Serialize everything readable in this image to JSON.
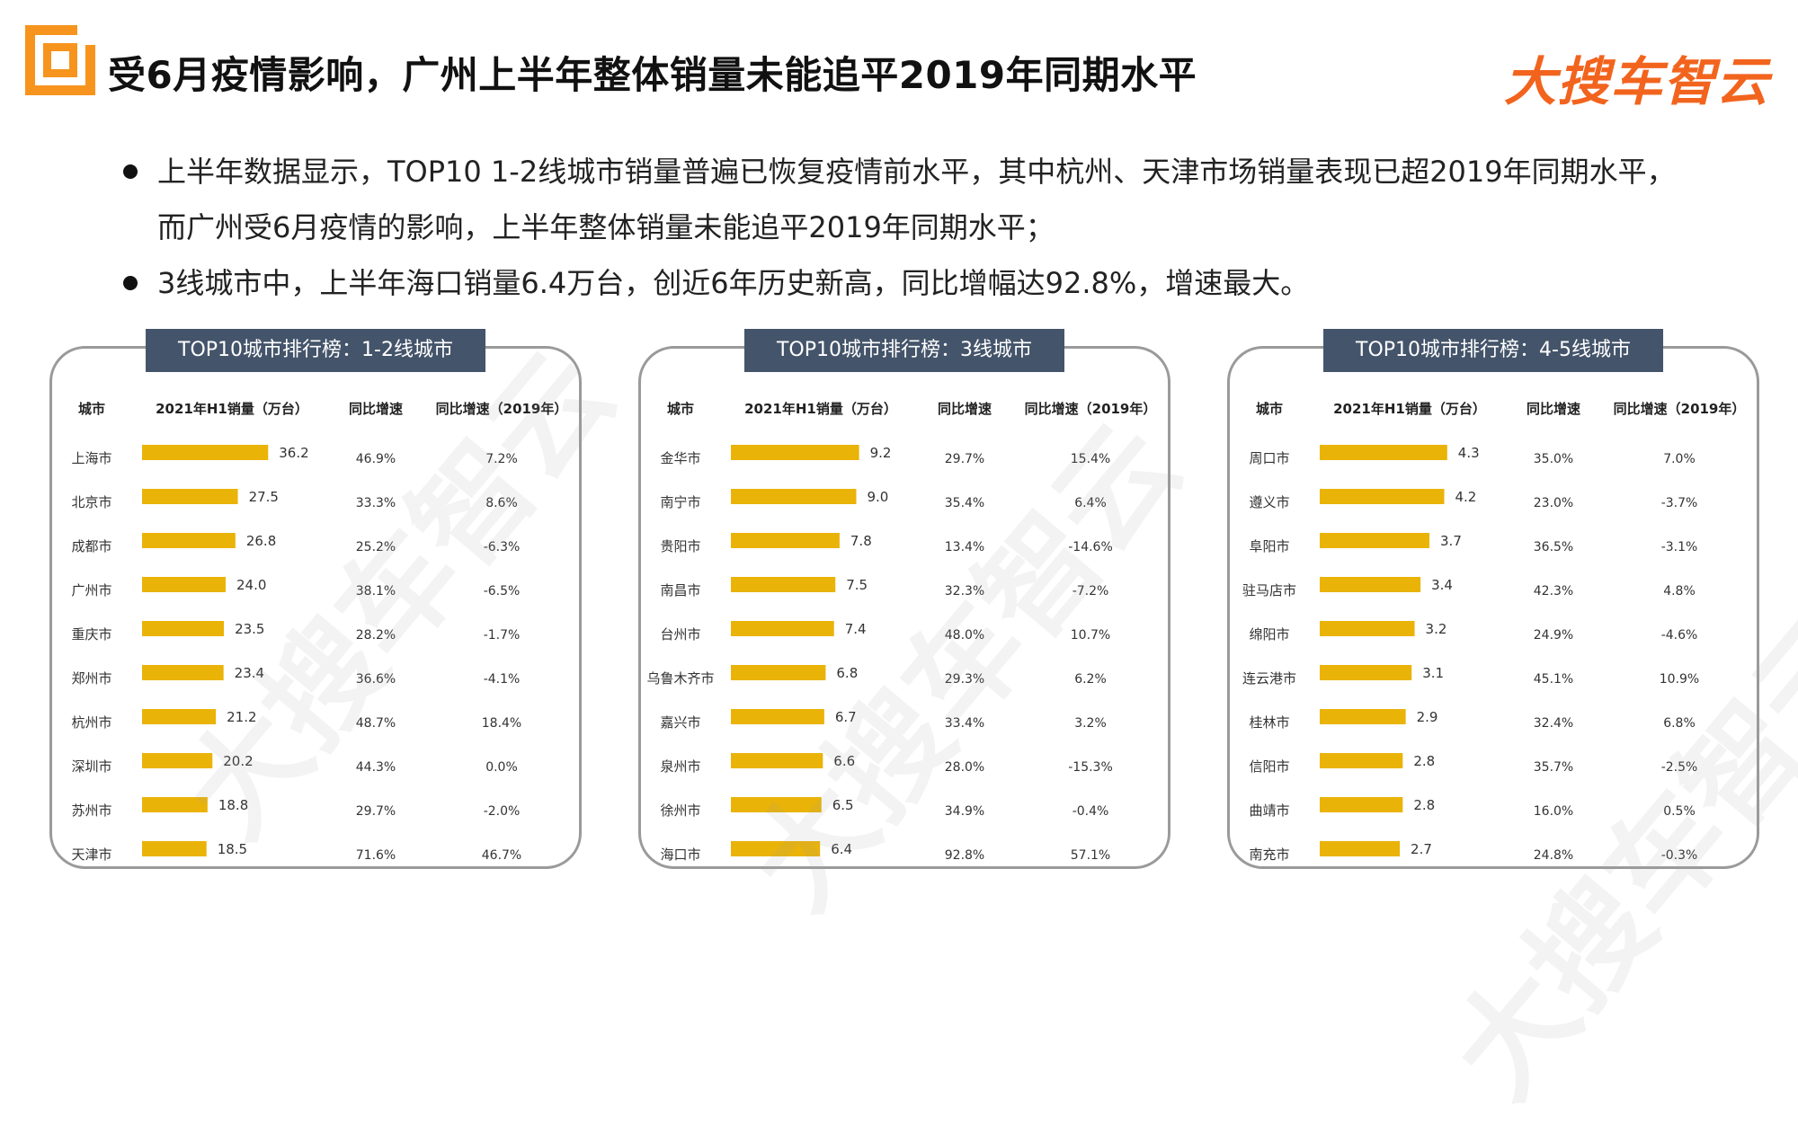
{
  "header": {
    "title": "受6月疫情影响，广州上半年整体销量未能追平2019年同期水平",
    "brand": "大搜车智云"
  },
  "bullets": [
    {
      "lines": [
        "上半年数据显示，TOP10  1-2线城市销量普遍已恢复疫情前水平，其中杭州、天津市场销量表现已超2019年同期水平，",
        "而广州受6月疫情的影响，上半年整体销量未能追平2019年同期水平；"
      ]
    },
    {
      "lines": [
        "3线城市中，上半年海口销量6.4万台，创近6年历史新高，同比增幅达92.8%，增速最大。"
      ]
    }
  ],
  "watermark": "大搜车智云",
  "colors": {
    "bar": "#eab308",
    "panel_title_bg": "#44546a",
    "brand": "#f2641e",
    "logo": "#f7941d"
  },
  "chart_data": [
    {
      "type": "bar",
      "title": "TOP10城市排行榜：1-2线城市",
      "columns": [
        "城市",
        "2021年H1销量（万台）",
        "同比增速",
        "同比增速（2019年）"
      ],
      "categories": [
        "上海市",
        "北京市",
        "成都市",
        "广州市",
        "重庆市",
        "郑州市",
        "杭州市",
        "深圳市",
        "苏州市",
        "天津市"
      ],
      "values": [
        36.2,
        27.5,
        26.8,
        24.0,
        23.5,
        23.4,
        21.2,
        20.2,
        18.8,
        18.5
      ],
      "value_labels": [
        "36.2",
        "27.5",
        "26.8",
        "24.0",
        "23.5",
        "23.4",
        "21.2",
        "20.2",
        "18.8",
        "18.5"
      ],
      "yoy": [
        "46.9%",
        "33.3%",
        "25.2%",
        "38.1%",
        "28.2%",
        "36.6%",
        "48.7%",
        "44.3%",
        "29.7%",
        "71.6%"
      ],
      "yoy_2019": [
        "7.2%",
        "8.6%",
        "-6.3%",
        "-6.5%",
        "-1.7%",
        "-4.1%",
        "18.4%",
        "0.0%",
        "-2.0%",
        "46.7%"
      ],
      "xlim": [
        0,
        40
      ]
    },
    {
      "type": "bar",
      "title": "TOP10城市排行榜：3线城市",
      "columns": [
        "城市",
        "2021年H1销量（万台）",
        "同比增速",
        "同比增速（2019年）"
      ],
      "categories": [
        "金华市",
        "南宁市",
        "贵阳市",
        "南昌市",
        "台州市",
        "乌鲁木齐市",
        "嘉兴市",
        "泉州市",
        "徐州市",
        "海口市"
      ],
      "values": [
        9.2,
        9.0,
        7.8,
        7.5,
        7.4,
        6.8,
        6.7,
        6.6,
        6.5,
        6.4
      ],
      "value_labels": [
        "9.2",
        "9.0",
        "7.8",
        "7.5",
        "7.4",
        "6.8",
        "6.7",
        "6.6",
        "6.5",
        "6.4"
      ],
      "yoy": [
        "29.7%",
        "35.4%",
        "13.4%",
        "32.3%",
        "48.0%",
        "29.3%",
        "33.4%",
        "28.0%",
        "34.9%",
        "92.8%"
      ],
      "yoy_2019": [
        "15.4%",
        "6.4%",
        "-14.6%",
        "-7.2%",
        "10.7%",
        "6.2%",
        "3.2%",
        "-15.3%",
        "-0.4%",
        "57.1%"
      ],
      "xlim": [
        0,
        10
      ]
    },
    {
      "type": "bar",
      "title": "TOP10城市排行榜：4-5线城市",
      "columns": [
        "城市",
        "2021年H1销量（万台）",
        "同比增速",
        "同比增速（2019年）"
      ],
      "categories": [
        "周口市",
        "遵义市",
        "阜阳市",
        "驻马店市",
        "绵阳市",
        "连云港市",
        "桂林市",
        "信阳市",
        "曲靖市",
        "南充市"
      ],
      "values": [
        4.3,
        4.2,
        3.7,
        3.4,
        3.2,
        3.1,
        2.9,
        2.8,
        2.8,
        2.7
      ],
      "value_labels": [
        "4.3",
        "4.2",
        "3.7",
        "3.4",
        "3.2",
        "3.1",
        "2.9",
        "2.8",
        "2.8",
        "2.7"
      ],
      "yoy": [
        "35.0%",
        "23.0%",
        "36.5%",
        "42.3%",
        "24.9%",
        "45.1%",
        "32.4%",
        "35.7%",
        "16.0%",
        "24.8%"
      ],
      "yoy_2019": [
        "7.0%",
        "-3.7%",
        "-3.1%",
        "4.8%",
        "-4.6%",
        "10.9%",
        "6.8%",
        "-2.5%",
        "0.5%",
        "-0.3%"
      ],
      "xlim": [
        0,
        4.7
      ]
    }
  ]
}
